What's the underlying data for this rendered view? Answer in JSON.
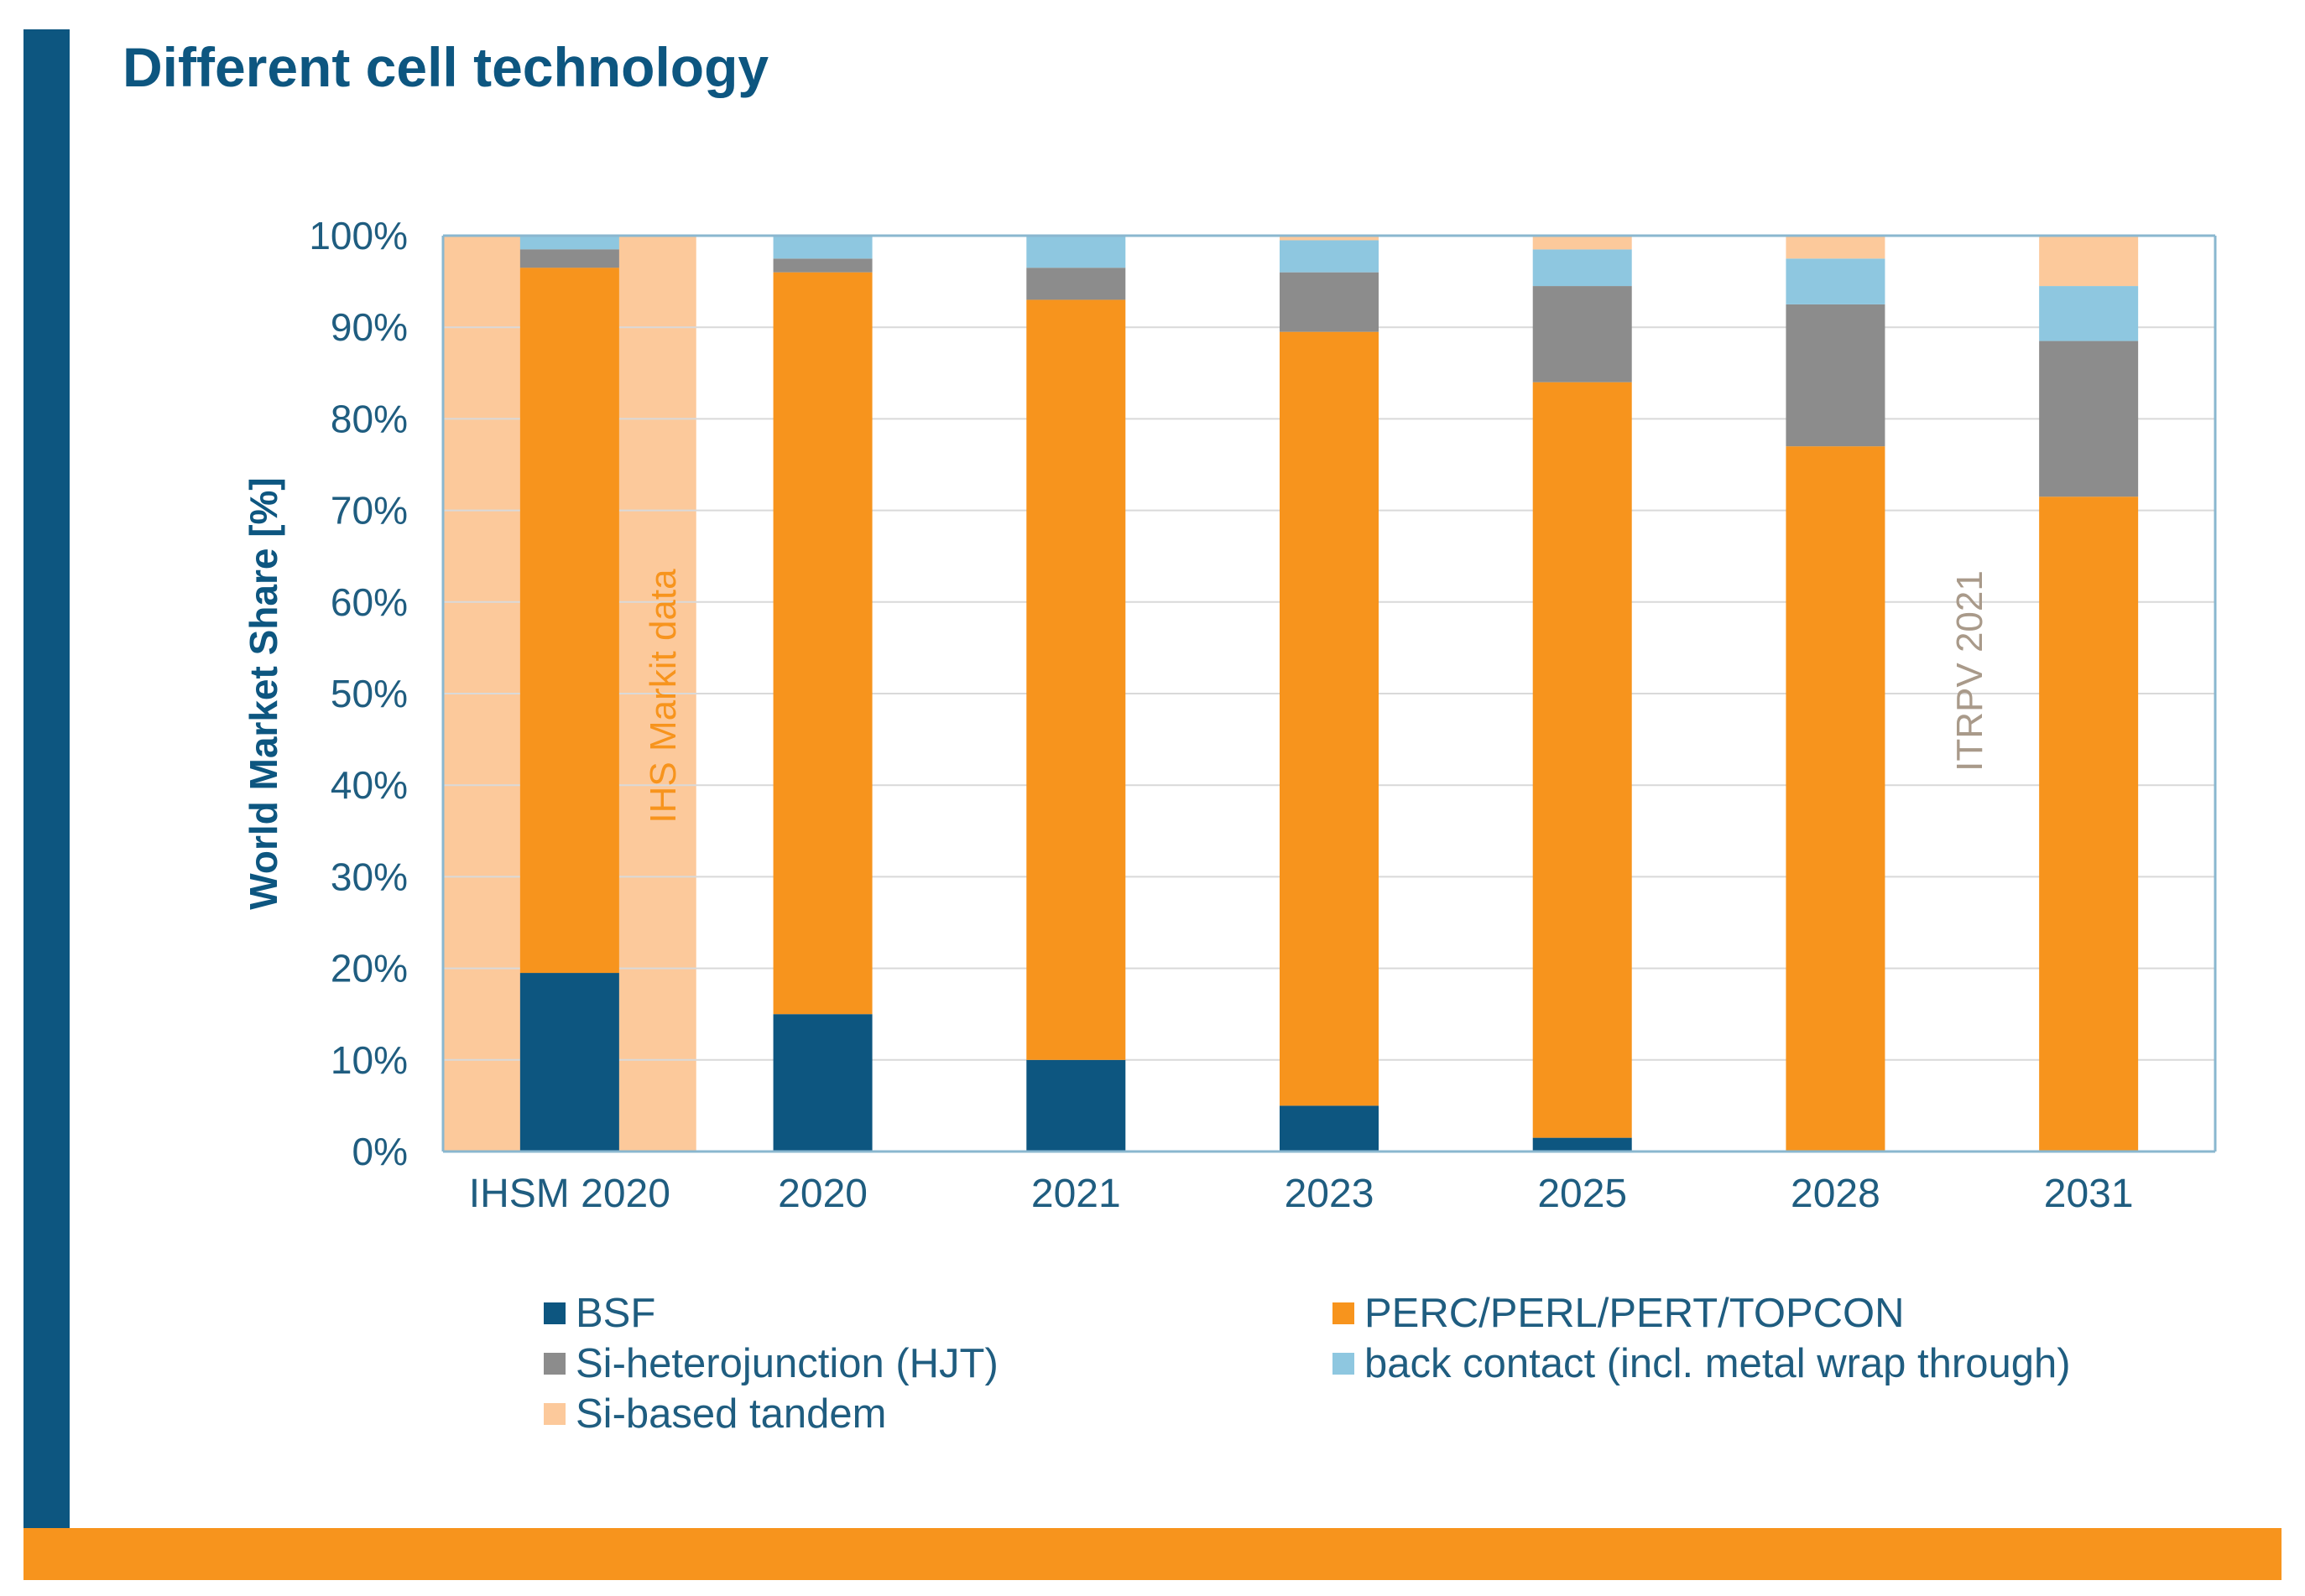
{
  "slide": {
    "title": "Different cell technology"
  },
  "legend": [
    {
      "label": "BSF",
      "color": "#0d5680"
    },
    {
      "label": "PERC/PERL/PERT/TOPCON",
      "color": "#f7941d"
    },
    {
      "label": "Si-heterojunction (HJT)",
      "color": "#8c8c8c"
    },
    {
      "label": "back contact (incl. metal wrap through)",
      "color": "#8ec7e0"
    },
    {
      "label": "Si-based tandem",
      "color": "#fcc99b"
    }
  ],
  "chart_data": {
    "type": "bar",
    "stacked": true,
    "title": "Different cell technology",
    "xlabel": "",
    "ylabel": "World Market Share [%]",
    "ylim": [
      0,
      100
    ],
    "yticks": [
      "0%",
      "10%",
      "20%",
      "30%",
      "40%",
      "50%",
      "60%",
      "70%",
      "80%",
      "90%",
      "100%"
    ],
    "categories": [
      "IHSM 2020",
      "2020",
      "2021",
      "2023",
      "2025",
      "2028",
      "2031"
    ],
    "series": [
      {
        "name": "BSF",
        "color": "#0d5680",
        "values": [
          19.5,
          15,
          10,
          5,
          1.5,
          0,
          0
        ]
      },
      {
        "name": "PERC/PERL/PERT/TOPCON",
        "color": "#f7941d",
        "values": [
          77,
          81,
          83,
          84.5,
          82.5,
          77,
          71.5
        ]
      },
      {
        "name": "Si-heterojunction (HJT)",
        "color": "#8c8c8c",
        "values": [
          2,
          1.5,
          3.5,
          6.5,
          10.5,
          15.5,
          17
        ]
      },
      {
        "name": "back contact (incl. metal wrap through)",
        "color": "#8ec7e0",
        "values": [
          1.5,
          2.5,
          3.5,
          3.5,
          4,
          5,
          6
        ]
      },
      {
        "name": "Si-based tandem",
        "color": "#fcc99b",
        "values": [
          0,
          0,
          0,
          0.5,
          1.5,
          2.5,
          5.5
        ]
      }
    ],
    "annotations": [
      {
        "text": "IHS Markit data",
        "color": "#f7941d"
      },
      {
        "text": "ITRPV 2021",
        "color": "#a99a8a"
      }
    ],
    "shaded_category": "IHSM 2020",
    "shade_color": "#fcc99b",
    "grid": true
  }
}
